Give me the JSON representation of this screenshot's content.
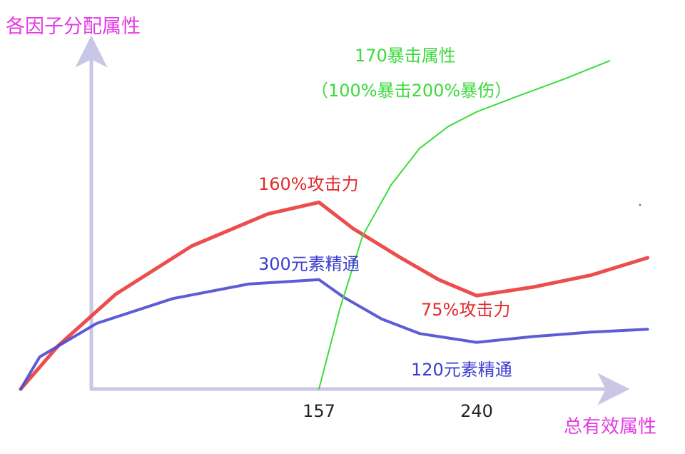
{
  "chart_data": {
    "type": "line",
    "ylabel": "各因子分配属性",
    "xlabel": "总有效属性",
    "x_ticks": [
      "157",
      "240"
    ],
    "axis_color": "#c9c6e6",
    "series": [
      {
        "color": "#ea3a3a",
        "x": [
          0,
          20,
          50,
          90,
          130,
          157,
          175,
          200,
          220,
          240,
          270,
          300,
          330
        ],
        "y": [
          0,
          30,
          65,
          98,
          120,
          128,
          110,
          90,
          75,
          64,
          70,
          78,
          90
        ],
        "labels": [
          {
            "text": "160%攻击力",
            "at_x": 157
          },
          {
            "text": "75%攻击力",
            "at_x": 240
          }
        ]
      },
      {
        "color": "#4a4ad0",
        "x": [
          0,
          10,
          40,
          80,
          120,
          157,
          170,
          190,
          210,
          240,
          270,
          300,
          330
        ],
        "y": [
          0,
          22,
          45,
          62,
          72,
          75,
          63,
          48,
          38,
          32,
          36,
          39,
          41
        ],
        "labels": [
          {
            "text": "300元素精通",
            "at_x": 157
          },
          {
            "text": "120元素精通",
            "at_x": 240
          }
        ]
      },
      {
        "color": "#3cdc3c",
        "x": [
          157,
          168,
          180,
          195,
          210,
          225,
          240,
          260,
          285,
          310
        ],
        "y": [
          0,
          55,
          105,
          140,
          165,
          180,
          190,
          200,
          212,
          225
        ],
        "labels": [
          {
            "text": "170暴击属性",
            "at_x": 240
          },
          {
            "text": "（100%暴击200%暴伤）",
            "at_x": 240
          }
        ]
      }
    ]
  }
}
